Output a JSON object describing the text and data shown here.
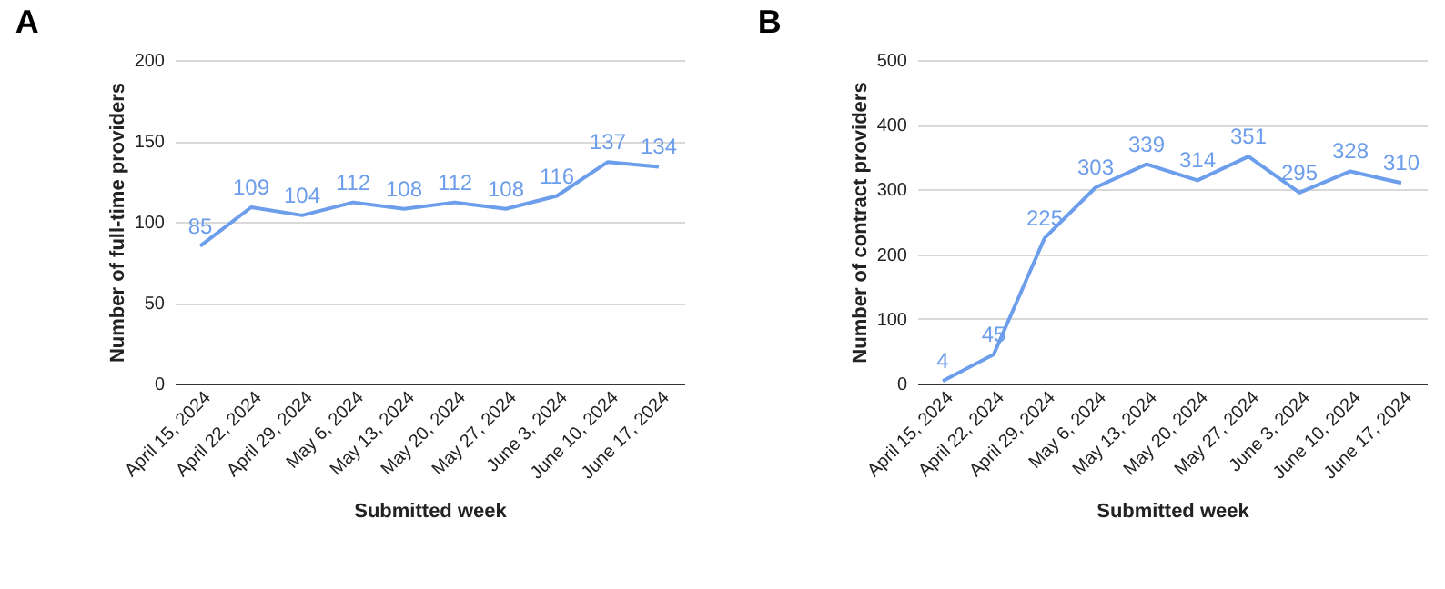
{
  "chart_data": [
    {
      "type": "line",
      "title": "A",
      "xlabel": "Submitted week",
      "ylabel": "Number of full-time providers",
      "categories": [
        "April 15, 2024",
        "April 22, 2024",
        "April 29, 2024",
        "May 6, 2024",
        "May 13, 2024",
        "May 20, 2024",
        "May 27, 2024",
        "June 3, 2024",
        "June 10, 2024",
        "June 17, 2024"
      ],
      "values": [
        85,
        109,
        104,
        112,
        108,
        112,
        108,
        116,
        137,
        134
      ],
      "color": "#6d9eeb",
      "ylim": [
        0,
        200
      ],
      "yticks": [
        0,
        50,
        100,
        150,
        200
      ],
      "grid": "y",
      "data_labels": true
    },
    {
      "type": "line",
      "title": "B",
      "xlabel": "Submitted week",
      "ylabel": "Number of contract providers",
      "categories": [
        "April 15, 2024",
        "April 22, 2024",
        "April 29, 2024",
        "May 6, 2024",
        "May 13, 2024",
        "May 20, 2024",
        "May 27, 2024",
        "June 3, 2024",
        "June 10, 2024",
        "June 17, 2024"
      ],
      "values": [
        4,
        45,
        225,
        303,
        339,
        314,
        351,
        295,
        328,
        310
      ],
      "color": "#6d9eeb",
      "ylim": [
        0,
        500
      ],
      "yticks": [
        0,
        100,
        200,
        300,
        400,
        500
      ],
      "grid": "y",
      "data_labels": true
    }
  ]
}
